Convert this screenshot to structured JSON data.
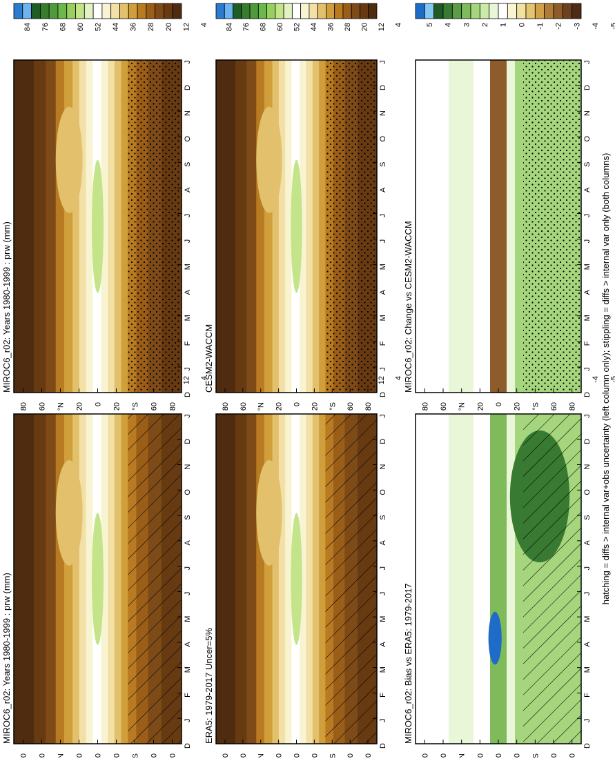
{
  "figure": {
    "footnote": "hatching = diffs > internal var+obs uncertainty (left column only); stippling = diffs > internal var only (both columns)"
  },
  "colors": {
    "abs_scale": [
      "#2b7bd0",
      "#6cb4ef",
      "#1e5e24",
      "#387c2e",
      "#4f9a3b",
      "#6cb94b",
      "#98d060",
      "#c3e489",
      "#e3f2c1",
      "#ffffff",
      "#f8f4d2",
      "#f2e0a6",
      "#e2c06c",
      "#d09e3b",
      "#b97b22",
      "#9a5e18",
      "#7e4a17",
      "#673a12",
      "#4f2c0f"
    ],
    "diff_scale": [
      "#1f6bc8",
      "#82c8f0",
      "#1f5a25",
      "#387a32",
      "#5a9d45",
      "#7fbb5b",
      "#a5d57c",
      "#cbe9a7",
      "#e9f6d8",
      "#ffffff",
      "#fbf6d2",
      "#f1e2a0",
      "#e3c46f",
      "#cfa249",
      "#b07c35",
      "#8e5b2b",
      "#6c4020",
      "#4d2b14"
    ]
  },
  "chart_data": [
    {
      "type": "heatmap",
      "panel": "top-left",
      "title": "MIROC6_r02: Years 1980-1999 : prw (mm)",
      "xticklabels": [
        "D",
        "J",
        "F",
        "M",
        "A",
        "M",
        "J",
        "J",
        "A",
        "S",
        "O",
        "N",
        "D",
        "J"
      ],
      "yticklabels": [
        "80",
        "60",
        "°N",
        "20",
        "0",
        "20",
        "°S",
        "60",
        "80"
      ],
      "zlabel": "prw (mm)",
      "colorbar_ticks": [
        "84",
        "76",
        "68",
        "60",
        "52",
        "44",
        "36",
        "28",
        "20",
        "12",
        "4"
      ],
      "ylim": [
        -90,
        90
      ],
      "hatching": true,
      "stippling": true
    },
    {
      "type": "heatmap",
      "panel": "top-right",
      "title": "MIROC6_r02: Years 1980-1999 : prw (mm)",
      "xticklabels": [
        "D",
        "J",
        "F",
        "M",
        "A",
        "M",
        "J",
        "J",
        "A",
        "S",
        "O",
        "N",
        "D",
        "J"
      ],
      "yticklabels": [
        "80",
        "60",
        "°N",
        "20",
        "0",
        "20",
        "°S",
        "60",
        "80"
      ],
      "colorbar_ticks": [
        "84",
        "76",
        "68",
        "60",
        "52",
        "44",
        "36",
        "28",
        "20",
        "12",
        "4"
      ],
      "ylim": [
        -90,
        90
      ],
      "hatching": false,
      "stippling": true
    },
    {
      "type": "heatmap",
      "panel": "middle-left",
      "title": "ERA5: 1979-2017 Uncer=5%",
      "xticklabels": [
        "D",
        "J",
        "F",
        "M",
        "A",
        "M",
        "J",
        "J",
        "A",
        "S",
        "O",
        "N",
        "D",
        "J"
      ],
      "yticklabels": [
        "80",
        "60",
        "°N",
        "20",
        "0",
        "20",
        "°S",
        "60",
        "80"
      ],
      "colorbar_ticks": [
        "84",
        "76",
        "68",
        "60",
        "52",
        "44",
        "36",
        "28",
        "20",
        "12",
        "4"
      ],
      "ylim": [
        -90,
        90
      ],
      "hatching": true,
      "stippling": true
    },
    {
      "type": "heatmap",
      "panel": "middle-right",
      "title": "CESM2-WACCM",
      "xticklabels": [
        "D",
        "J",
        "F",
        "M",
        "A",
        "M",
        "J",
        "J",
        "A",
        "S",
        "O",
        "N",
        "D",
        "J"
      ],
      "yticklabels": [
        "80",
        "60",
        "°N",
        "20",
        "0",
        "20",
        "°S",
        "60",
        "80"
      ],
      "colorbar_ticks": [
        "84",
        "76",
        "68",
        "60",
        "52",
        "44",
        "36",
        "28",
        "20",
        "12",
        "4"
      ],
      "ylim": [
        -90,
        90
      ],
      "hatching": false,
      "stippling": true
    },
    {
      "type": "heatmap",
      "panel": "bottom-left",
      "title": "MIROC6_r02: Bias vs ERA5: 1979-2017",
      "xticklabels": [
        "D",
        "J",
        "F",
        "M",
        "A",
        "M",
        "J",
        "J",
        "A",
        "S",
        "O",
        "N",
        "D",
        "J"
      ],
      "yticklabels": [
        "80",
        "60",
        "°N",
        "20",
        "0",
        "20",
        "°S",
        "60",
        "80"
      ],
      "colorbar_ticks": [
        "5",
        "4",
        "3",
        "2",
        "1",
        "0",
        "-1",
        "-2",
        "-3",
        "-4",
        "-5"
      ],
      "ylim": [
        -90,
        90
      ],
      "hatching": true,
      "stippling": true
    },
    {
      "type": "heatmap",
      "panel": "bottom-right",
      "title": "MIROC6_r02: Change vs CESM2-WACCM",
      "xticklabels": [
        "D",
        "J",
        "F",
        "M",
        "A",
        "M",
        "J",
        "J",
        "A",
        "S",
        "O",
        "N",
        "D",
        "J"
      ],
      "yticklabels": [
        "80",
        "60",
        "°N",
        "20",
        "0",
        "20",
        "°S",
        "60",
        "80"
      ],
      "colorbar_ticks": [
        "5",
        "4",
        "3",
        "2",
        "1",
        "0",
        "-1",
        "-2",
        "-3",
        "-4",
        "-5"
      ],
      "ylim": [
        -90,
        90
      ],
      "hatching": false,
      "stippling": true
    }
  ]
}
